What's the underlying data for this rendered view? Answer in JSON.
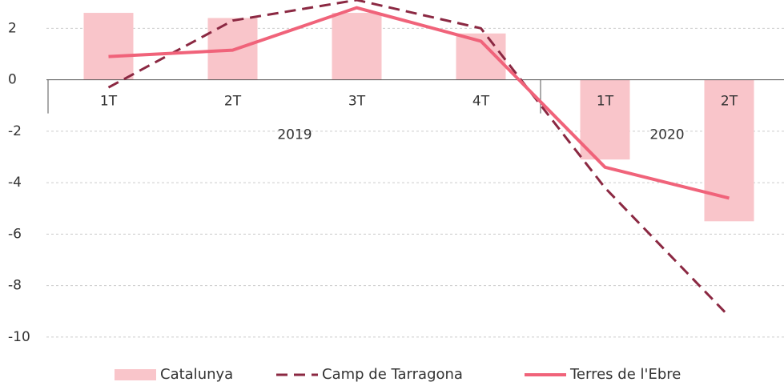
{
  "chart_data": {
    "type": "bar_line",
    "categories": [
      "1T",
      "2T",
      "3T",
      "4T",
      "1T",
      "2T"
    ],
    "category_groups": [
      {
        "name": "2019",
        "count": 4
      },
      {
        "name": "2020",
        "count": 2
      }
    ],
    "series": [
      {
        "name": "Catalunya",
        "type": "bar",
        "color": "#f9c5ca",
        "values": [
          2.6,
          2.4,
          2.6,
          1.8,
          -3.1,
          -5.5
        ]
      },
      {
        "name": "Camp de Tarragona",
        "type": "line",
        "dashed": true,
        "color": "#8b2842",
        "values": [
          -0.3,
          2.3,
          3.1,
          2.0,
          -4.2,
          -9.2
        ]
      },
      {
        "name": "Terres de l'Ebre",
        "type": "line",
        "dashed": false,
        "color": "#f0637a",
        "values": [
          0.9,
          1.15,
          2.8,
          1.5,
          -3.4,
          -4.6
        ]
      }
    ],
    "ylim": [
      -11,
      3.1
    ],
    "yticks": [
      2,
      0,
      -2,
      -4,
      -6,
      -8,
      -10
    ],
    "grid": true,
    "legend": "bottom"
  }
}
